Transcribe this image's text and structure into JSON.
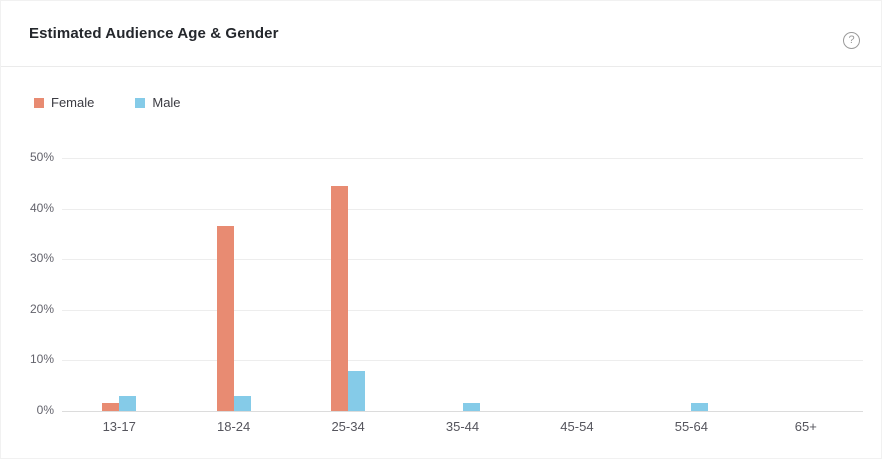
{
  "header": {
    "title": "Estimated Audience Age & Gender",
    "help_icon": {
      "name": "question-mark-circle",
      "glyph": "?"
    }
  },
  "legend": {
    "position": "top-left",
    "items": [
      {
        "label": "Female",
        "color": "#e88b72"
      },
      {
        "label": "Male",
        "color": "#85cbe8"
      }
    ]
  },
  "chart_data": {
    "type": "bar",
    "title": "Estimated Audience Age & Gender",
    "categories": [
      "13-17",
      "18-24",
      "25-34",
      "35-44",
      "45-54",
      "55-64",
      "65+"
    ],
    "series": [
      {
        "name": "Female",
        "color": "#e88b72",
        "values": [
          1.5,
          36.5,
          44.5,
          0,
          0,
          0,
          0
        ]
      },
      {
        "name": "Male",
        "color": "#85cbe8",
        "values": [
          3,
          3,
          8,
          1.5,
          0,
          1.5,
          0
        ]
      }
    ],
    "xlabel": "",
    "ylabel": "",
    "y_unit": "%",
    "ylim": [
      0,
      50
    ],
    "y_tick_step": 10,
    "y_ticks": [
      "0%",
      "10%",
      "20%",
      "30%",
      "40%",
      "50%"
    ],
    "grid": true,
    "legend_position": "top-left"
  },
  "colors": {
    "female": "#e88b72",
    "male": "#85cbe8",
    "gridline": "#ededed",
    "axis_line": "#dcdcdc",
    "tick_text": "#63636c",
    "title_text": "#24272c",
    "background": "#ffffff"
  }
}
